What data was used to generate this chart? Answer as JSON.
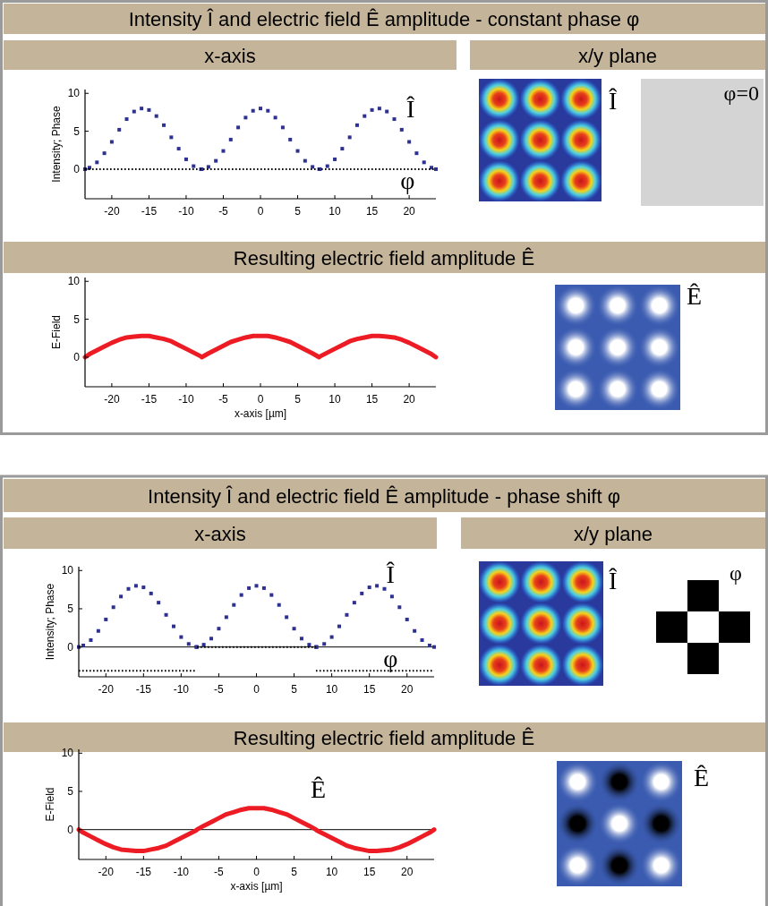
{
  "chart_data": [
    {
      "type": "line",
      "title": "Intensity Î and electric field Ê amplitude - constant phase φ",
      "ylabel": "Intensity; Phase",
      "annotations": [
        "x-axis",
        "x/y plane",
        "Î",
        "φ=0"
      ],
      "xlim": [
        -23.6,
        23.6
      ],
      "ylim": [
        -3.9,
        10.5
      ],
      "xticks": [
        -20,
        -15,
        -10,
        -5,
        0,
        5,
        10,
        15,
        20
      ],
      "yticks": [
        0,
        5,
        10
      ],
      "x": [
        -23.6,
        -23,
        -22,
        -21,
        -20,
        -19,
        -18,
        -17,
        -16,
        -15,
        -14,
        -13,
        -12,
        -11,
        -10,
        -9,
        -8,
        -7.9,
        -7,
        -6,
        -5,
        -4,
        -3,
        -2,
        -1,
        0,
        1,
        2,
        3,
        4,
        5,
        6,
        7,
        7.9,
        8,
        9,
        10,
        11,
        12,
        13,
        14,
        15,
        16,
        17,
        18,
        19,
        20,
        21,
        22,
        23,
        23.6
      ],
      "series": [
        {
          "name": "Î",
          "type": "scatter",
          "marker": "square",
          "color": "#2e3192",
          "values": [
            0.0,
            0.2,
            0.9,
            2.1,
            3.6,
            5.2,
            6.6,
            7.6,
            8.0,
            7.8,
            7.0,
            5.8,
            4.2,
            2.7,
            1.3,
            0.4,
            0.0,
            0.0,
            0.3,
            1.1,
            2.4,
            3.9,
            5.5,
            6.8,
            7.7,
            8.0,
            7.7,
            6.8,
            5.5,
            3.9,
            2.4,
            1.1,
            0.3,
            0.0,
            0.0,
            0.4,
            1.3,
            2.7,
            4.2,
            5.8,
            7.0,
            7.8,
            8.0,
            7.6,
            6.6,
            5.2,
            3.6,
            2.1,
            0.9,
            0.2,
            0.0
          ]
        },
        {
          "name": "φ",
          "type": "line",
          "line_style": "dotted",
          "color": "#000000",
          "x": [
            -23.6,
            23.6
          ],
          "values": [
            0,
            0
          ]
        }
      ]
    },
    {
      "type": "line",
      "title": "Resulting electric field amplitude Ê",
      "ylabel": "E-Field",
      "xlabel": "x-axis [µm]",
      "annotations": [
        "Ê"
      ],
      "xlim": [
        -23.6,
        23.6
      ],
      "ylim": [
        -3.9,
        10.5
      ],
      "xticks": [
        -20,
        -15,
        -10,
        -5,
        0,
        5,
        10,
        15,
        20
      ],
      "yticks": [
        0,
        5,
        10
      ],
      "x": [
        -23.6,
        -23,
        -22,
        -21,
        -20,
        -19,
        -18,
        -17,
        -16,
        -15,
        -14,
        -13,
        -12,
        -11,
        -10,
        -9,
        -8,
        -7.9,
        -7,
        -6,
        -5,
        -4,
        -3,
        -2,
        -1,
        0,
        1,
        2,
        3,
        4,
        5,
        6,
        7,
        7.9,
        8,
        9,
        10,
        11,
        12,
        13,
        14,
        15,
        16,
        17,
        18,
        19,
        20,
        21,
        22,
        23,
        23.6
      ],
      "series": [
        {
          "type": "line",
          "line_style": "solid",
          "color": "#ed1c24",
          "values": [
            0.0,
            0.4,
            0.9,
            1.4,
            1.9,
            2.3,
            2.6,
            2.7,
            2.8,
            2.8,
            2.6,
            2.4,
            2.1,
            1.6,
            1.1,
            0.6,
            0.1,
            0.0,
            0.5,
            1.0,
            1.5,
            2.0,
            2.3,
            2.6,
            2.8,
            2.8,
            2.8,
            2.6,
            2.3,
            2.0,
            1.5,
            1.0,
            0.5,
            0.0,
            0.1,
            0.6,
            1.1,
            1.6,
            2.1,
            2.4,
            2.6,
            2.8,
            2.8,
            2.7,
            2.6,
            2.3,
            1.9,
            1.4,
            0.9,
            0.4,
            0.0
          ]
        }
      ]
    },
    {
      "type": "line",
      "title": "Intensity Î and electric field Ê amplitude - phase shift φ",
      "ylabel": "Intensity; Phase",
      "annotations": [
        "x-axis",
        "x/y plane",
        "Î",
        "φ"
      ],
      "ref_lines": [
        {
          "axis": "y",
          "value": 0,
          "color": "#000000"
        }
      ],
      "xlim": [
        -23.6,
        23.6
      ],
      "ylim": [
        -3.9,
        10.5
      ],
      "xticks": [
        -20,
        -15,
        -10,
        -5,
        0,
        5,
        10,
        15,
        20
      ],
      "yticks": [
        0,
        5,
        10
      ],
      "x": [
        -23.6,
        -23,
        -22,
        -21,
        -20,
        -19,
        -18,
        -17,
        -16,
        -15,
        -14,
        -13,
        -12,
        -11,
        -10,
        -9,
        -8,
        -7.9,
        -7,
        -6,
        -5,
        -4,
        -3,
        -2,
        -1,
        0,
        1,
        2,
        3,
        4,
        5,
        6,
        7,
        7.9,
        8,
        9,
        10,
        11,
        12,
        13,
        14,
        15,
        16,
        17,
        18,
        19,
        20,
        21,
        22,
        23,
        23.6
      ],
      "series": [
        {
          "name": "Î",
          "type": "scatter",
          "marker": "square",
          "color": "#2e3192",
          "values": [
            0.0,
            0.2,
            0.9,
            2.1,
            3.6,
            5.2,
            6.6,
            7.6,
            8.0,
            7.8,
            7.0,
            5.8,
            4.2,
            2.7,
            1.3,
            0.4,
            0.0,
            0.0,
            0.3,
            1.1,
            2.4,
            3.9,
            5.5,
            6.8,
            7.7,
            8.0,
            7.7,
            6.8,
            5.5,
            3.9,
            2.4,
            1.1,
            0.3,
            0.0,
            0.0,
            0.4,
            1.3,
            2.7,
            4.2,
            5.8,
            7.0,
            7.8,
            8.0,
            7.6,
            6.6,
            5.2,
            3.6,
            2.1,
            0.9,
            0.2,
            0.0
          ]
        },
        {
          "name": "φ",
          "type": "line",
          "line_style": "dotted",
          "color": "#000000",
          "x": [
            7.9,
            23.6
          ],
          "values": [
            -3.1,
            -3.1
          ]
        },
        {
          "type": "line",
          "line_style": "dotted",
          "color": "#000000",
          "x": [
            -7.9,
            7.9
          ],
          "values": [
            0,
            0
          ]
        },
        {
          "type": "line",
          "line_style": "dotted",
          "color": "#000000",
          "x": [
            -23.6,
            -7.9
          ],
          "values": [
            -3.1,
            -3.1
          ]
        }
      ]
    },
    {
      "type": "line",
      "title": "Resulting electric field amplitude Ê",
      "ylabel": "E-Field",
      "xlabel": "x-axis [µm]",
      "annotations": [
        "Ê"
      ],
      "ref_lines": [
        {
          "axis": "y",
          "value": 0,
          "color": "#000000"
        }
      ],
      "xlim": [
        -23.6,
        23.6
      ],
      "ylim": [
        -3.9,
        10.5
      ],
      "xticks": [
        -20,
        -15,
        -10,
        -5,
        0,
        5,
        10,
        15,
        20
      ],
      "yticks": [
        0,
        5,
        10
      ],
      "x": [
        -23.6,
        -23,
        -22,
        -21,
        -20,
        -19,
        -18,
        -17,
        -16,
        -15,
        -14,
        -13,
        -12,
        -11,
        -10,
        -9,
        -8,
        -7.9,
        -7,
        -6,
        -5,
        -4,
        -3,
        -2,
        -1,
        0,
        1,
        2,
        3,
        4,
        5,
        6,
        7,
        7.9,
        8,
        9,
        10,
        11,
        12,
        13,
        14,
        15,
        16,
        17,
        18,
        19,
        20,
        21,
        22,
        23,
        23.6
      ],
      "series": [
        {
          "name": "Ê",
          "type": "line",
          "line_style": "solid",
          "color": "#ed1c24",
          "values": [
            0.0,
            -0.4,
            -0.9,
            -1.4,
            -1.9,
            -2.3,
            -2.6,
            -2.7,
            -2.8,
            -2.8,
            -2.6,
            -2.4,
            -2.1,
            -1.6,
            -1.1,
            -0.6,
            -0.1,
            0.0,
            0.5,
            1.0,
            1.5,
            2.0,
            2.3,
            2.6,
            2.8,
            2.8,
            2.8,
            2.6,
            2.3,
            2.0,
            1.5,
            1.0,
            0.5,
            0.0,
            -0.1,
            -0.6,
            -1.1,
            -1.6,
            -2.1,
            -2.4,
            -2.6,
            -2.8,
            -2.8,
            -2.7,
            -2.6,
            -2.3,
            -1.9,
            -1.4,
            -0.9,
            -0.4,
            0.0
          ]
        }
      ]
    }
  ]
}
